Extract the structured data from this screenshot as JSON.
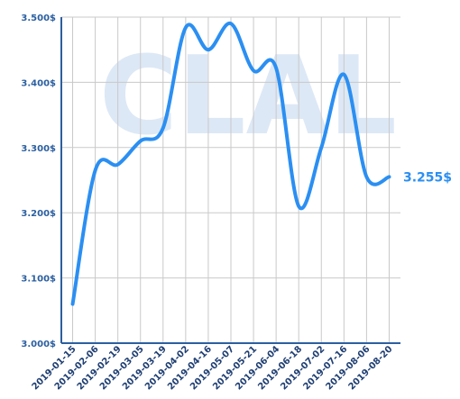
{
  "chart_data": {
    "type": "line",
    "x": [
      "2019-01-15",
      "2019-02-06",
      "2019-02-19",
      "2019-03-05",
      "2019-03-19",
      "2019-04-02",
      "2019-04-16",
      "2019-05-07",
      "2019-05-21",
      "2019-06-04",
      "2019-06-18",
      "2019-07-02",
      "2019-07-16",
      "2019-08-06",
      "2019-08-20"
    ],
    "values": [
      3.06,
      3.265,
      3.274,
      3.31,
      3.33,
      3.484,
      3.45,
      3.49,
      3.418,
      3.422,
      3.21,
      3.3,
      3.412,
      3.255,
      3.255
    ],
    "yticks": [
      "3.500$",
      "3.400$",
      "3.300$",
      "3.200$",
      "3.100$",
      "3.000$"
    ],
    "ylim": [
      3.0,
      3.5
    ],
    "last_value_label": "3.255$",
    "watermark": "CLAL",
    "line_color": "#2b8ff2",
    "grid": true
  }
}
